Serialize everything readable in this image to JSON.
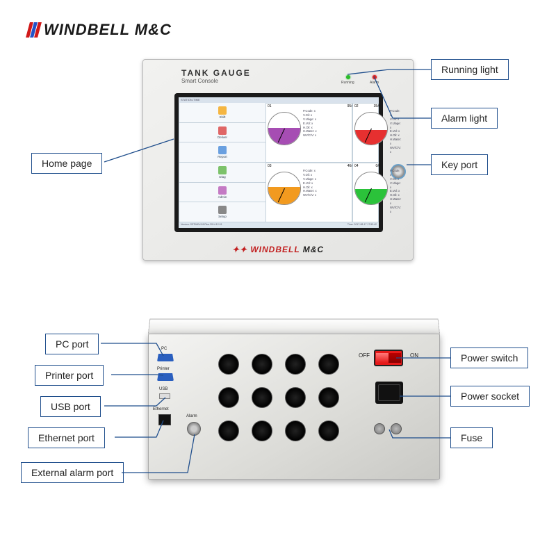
{
  "brand": {
    "text": "WINDBELL M&C",
    "stripe_colors": [
      "#d11919",
      "#2452c7",
      "#d11919"
    ],
    "text_color": "#1a1a1a"
  },
  "front": {
    "title": "TANK GAUGE",
    "subtitle": "Smart Console",
    "leds": {
      "running": "Running",
      "alarm": "Alarm"
    },
    "lcd_header": "STATION-TIME",
    "lcd_footer_left": "Version: SSTIMEv3.8.Plus.2014.12.01",
    "lcd_footer_right": "Time: 2017-08-17 17:53:42",
    "tanks": [
      {
        "id": "01",
        "grade": "95#",
        "fill_pct": 52,
        "fill_color": "#a64db3",
        "stats": [
          "P.Code: x",
          "V.Oil: x",
          "V.Ulage: x",
          "E.Vol: x",
          "H.Oil: x",
          "H.Water: x",
          "WV/C/V: x"
        ]
      },
      {
        "id": "02",
        "grade": "35#",
        "fill_pct": 45,
        "fill_color": "#e63030",
        "stats": [
          "P.Code: x",
          "V.Oil: x",
          "V.Ulage: x",
          "E.Vol: x",
          "H.Oil: x",
          "H.Water: x",
          "WV/C/V: x"
        ]
      },
      {
        "id": "03",
        "grade": "46#",
        "fill_pct": 55,
        "fill_color": "#f29a1f",
        "stats": [
          "P.Code: x",
          "V.Oil: x",
          "V.Ulage: x",
          "E.Vol: x",
          "H.Oil: x",
          "H.Water: x",
          "WV/C/V: x"
        ]
      },
      {
        "id": "04",
        "grade": "0#",
        "fill_pct": 48,
        "fill_color": "#2bc23a",
        "stats": [
          "P.Code: x",
          "V.Oil: x",
          "V.Ulage: x",
          "E.Vol: x",
          "H.Oil: x",
          "H.Water: x",
          "WV/C/V: x"
        ]
      }
    ],
    "side_buttons": [
      {
        "label": "Shift",
        "color": "#f5b642"
      },
      {
        "label": "Deliver",
        "color": "#e06666"
      },
      {
        "label": "Report",
        "color": "#6aa0e0"
      },
      {
        "label": "Diag",
        "color": "#7cc26a"
      },
      {
        "label": "Admin",
        "color": "#c47ac4"
      },
      {
        "label": "Setup",
        "color": "#888"
      }
    ],
    "panel_logo_red": "WINDBELL",
    "panel_logo_black": " M&C"
  },
  "rear": {
    "labels": {
      "pc": "PC",
      "printer": "Printer",
      "usb": "USB",
      "eth": "Ethernet",
      "alarm": "Alarm",
      "off": "OFF",
      "on": "ON"
    }
  },
  "callouts": {
    "home": "Home page",
    "running": "Running light",
    "alarmlight": "Alarm light",
    "keyport": "Key port",
    "pc": "PC port",
    "printer": "Printer port",
    "usb": "USB port",
    "eth": "Ethernet port",
    "extalarm": "External alarm port",
    "pswitch": "Power switch",
    "psocket": "Power socket",
    "fuse": "Fuse"
  },
  "style": {
    "callout_border": "#1f4e8c",
    "callout_font_size": 14
  }
}
